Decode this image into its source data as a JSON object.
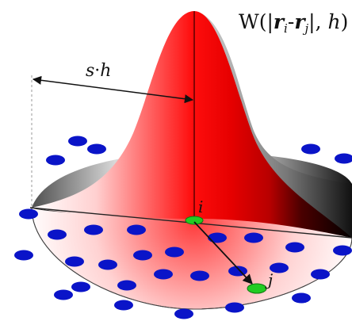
{
  "figure": {
    "function_label": {
      "prefix": "W(|",
      "r": "r",
      "i": "i",
      "dash": "-",
      "r2": "r",
      "j": "j",
      "mid": "|, ",
      "h": "h",
      "close": ")"
    },
    "support_label": {
      "s": "s",
      "dot": "·",
      "h": "h"
    },
    "particle_i_label": "i",
    "particle_j_label": "j"
  },
  "colors": {
    "kernel_peak": "#ff1a1a",
    "kernel_edge": "#ffffff",
    "particle": "#0a14c8",
    "highlight_particle": "#22cc22",
    "disc_shadow": "#9a9a9a"
  }
}
